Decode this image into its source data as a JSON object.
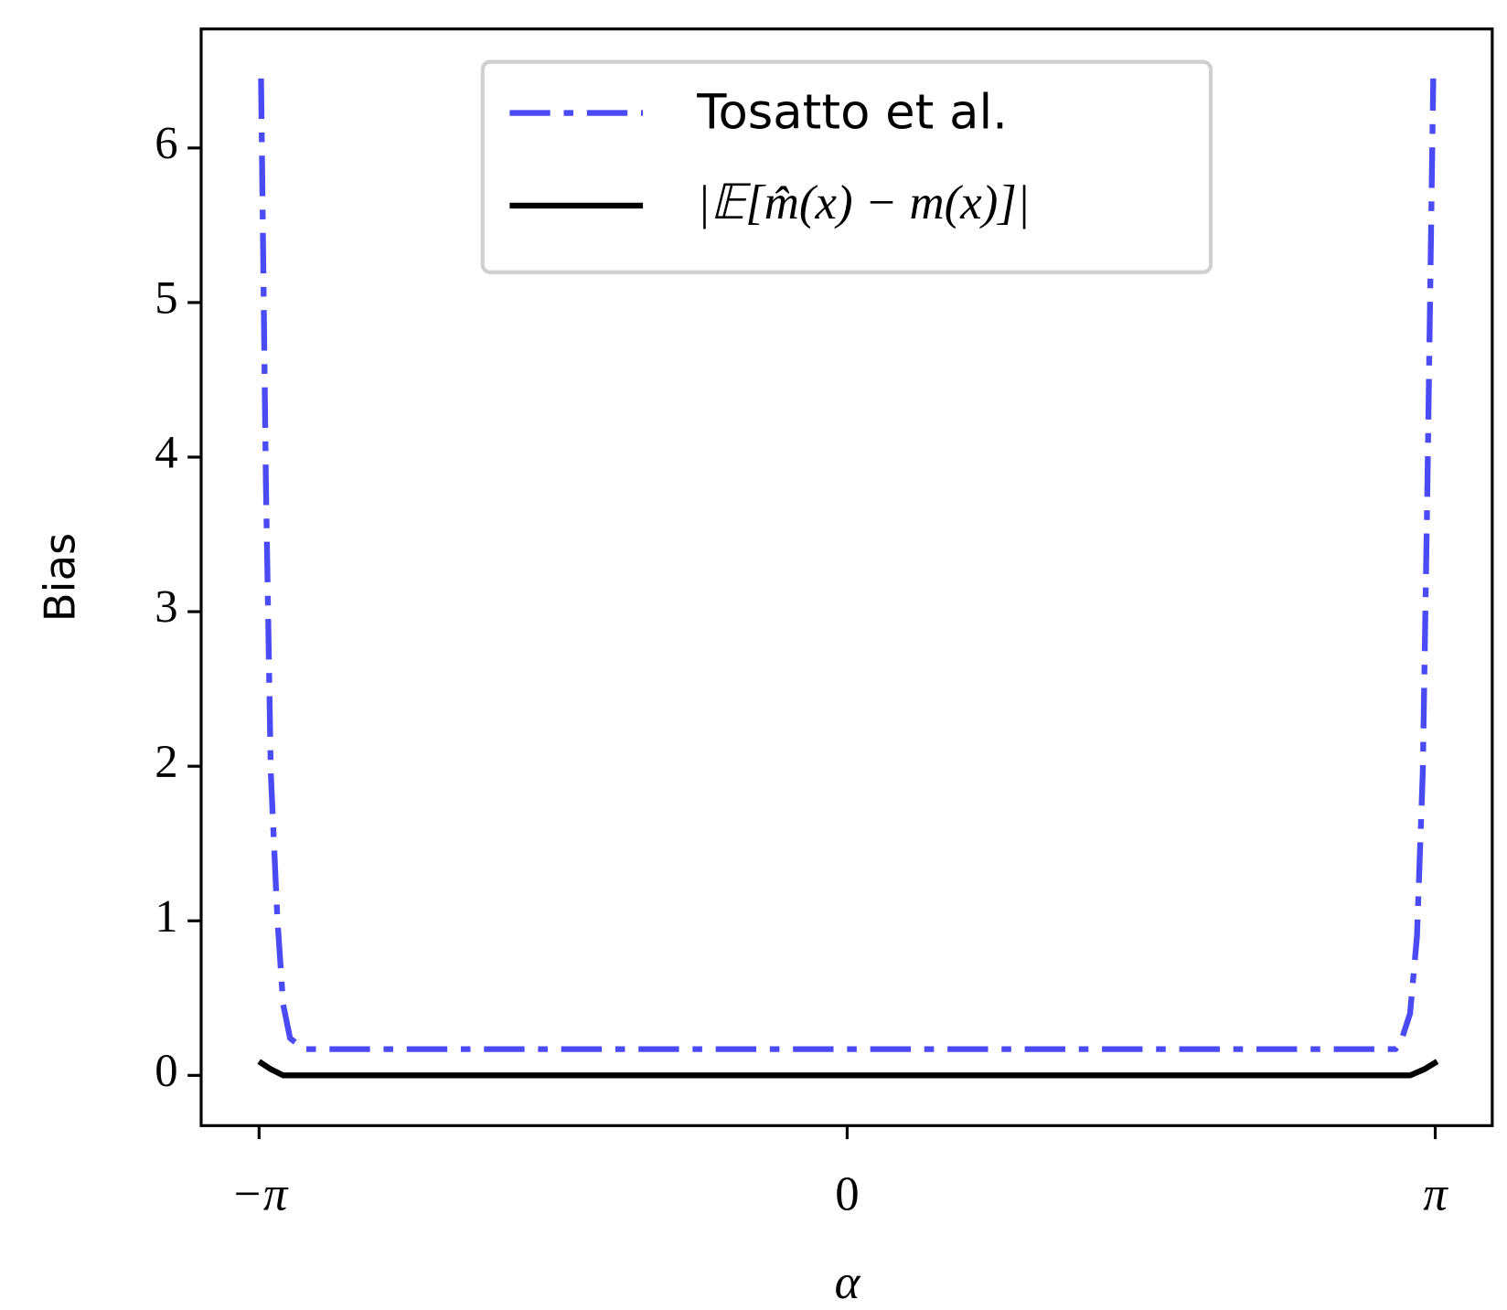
{
  "chart_data": {
    "type": "line",
    "xlabel": "α",
    "ylabel": "Bias",
    "xlim": [
      -3.451,
      3.446
    ],
    "ylim": [
      -0.325,
      6.77
    ],
    "xticks": [
      {
        "value": -3.14159,
        "label": "−π"
      },
      0,
      {
        "value": 3.14159,
        "label": "π"
      }
    ],
    "yticks": [
      0,
      1,
      2,
      3,
      4,
      5,
      6
    ],
    "legend": "upper center",
    "series": [
      {
        "name": "Tosatto et al.",
        "color": "#4b4bf5",
        "style": "dashdot",
        "x": [
          -3.131,
          -3.105,
          -3.079,
          -3.044,
          -3.013,
          -2.976,
          -2.899,
          0,
          2.93,
          2.956,
          3.007,
          3.044,
          3.075,
          3.1,
          3.131
        ],
        "values": [
          6.45,
          3.83,
          1.96,
          1.02,
          0.46,
          0.24,
          0.17,
          0.17,
          0.17,
          0.21,
          0.4,
          0.9,
          1.96,
          3.83,
          6.45
        ]
      },
      {
        "name": "|𝔼[m̂(x) − m(x)]|",
        "color": "#000000",
        "style": "solid",
        "x": [
          -3.142,
          -3.079,
          -3.013,
          0,
          3.007,
          3.084,
          3.152
        ],
        "values": [
          0.09,
          0.04,
          0,
          0,
          0,
          0.04,
          0.09
        ]
      }
    ]
  }
}
